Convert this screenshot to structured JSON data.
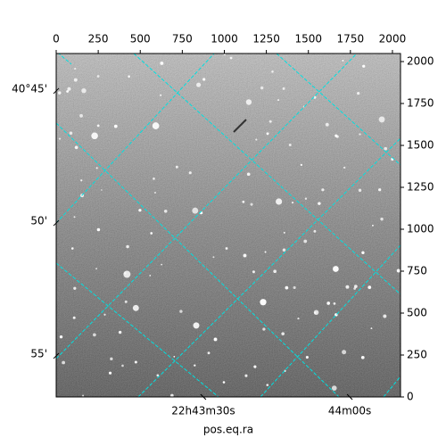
{
  "chart_data": {
    "type": "image",
    "xlabel": "pos.eq.ra",
    "xlim": [
      0,
      2048
    ],
    "ylim": [
      0,
      2048
    ],
    "xticks": [
      0,
      250,
      500,
      750,
      1000,
      1250,
      1500,
      1750,
      2000
    ],
    "yticks": [
      0,
      250,
      500,
      750,
      1000,
      1250,
      1500,
      1750,
      2000
    ],
    "ra_ticks": [
      {
        "value": 875,
        "label": "22h43m30s"
      },
      {
        "value": 1746,
        "label": "44m00s"
      }
    ],
    "dec_ticks": [
      {
        "value": 1825,
        "label": "40°45'"
      },
      {
        "value": 1037,
        "label": "50'"
      },
      {
        "value": 245,
        "label": "55'"
      }
    ],
    "grid_color": "#00e0e0"
  }
}
